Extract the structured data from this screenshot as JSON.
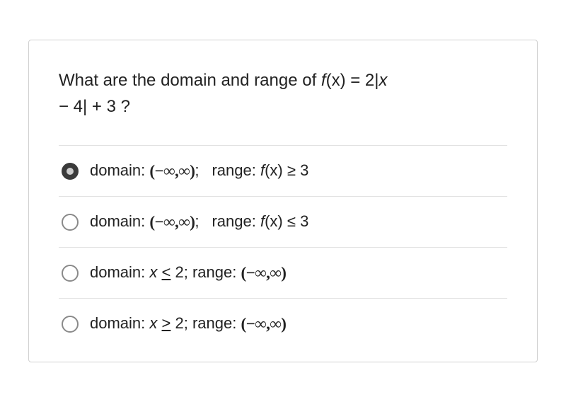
{
  "card": {
    "border_color": "#d0d0d0",
    "background": "#ffffff"
  },
  "question": {
    "prefix": "What are the domain and range of ",
    "fn": "f",
    "paren_x": "(x)",
    "eq": " = 2|",
    "xvar": "x",
    "second_line": " − 4| + 3 ?",
    "font_size": 24,
    "color": "#222222"
  },
  "infinity_interval_open": "(−∞,∞)",
  "options": [
    {
      "selected": true,
      "domain_label": "domain: ",
      "domain_value_kind": "inf_open",
      "domain_suffix": ";",
      "range_label": "range: ",
      "range_fn": "f",
      "range_fn_paren": "(x)",
      "range_op": " ≥ 3",
      "range_kind": "fx"
    },
    {
      "selected": false,
      "domain_label": "domain: ",
      "domain_value_kind": "inf_open",
      "domain_suffix": ";",
      "range_label": "range:  ",
      "range_fn": "f",
      "range_fn_paren": "(x)",
      "range_op": " ≤ 3",
      "range_kind": "fx"
    },
    {
      "selected": false,
      "domain_label": "domain: ",
      "domain_value_text": "x ≤ 2",
      "domain_suffix": "; ",
      "range_label": "range: ",
      "range_kind": "inf_open"
    },
    {
      "selected": false,
      "domain_label": "domain: ",
      "domain_value_text": "x ≥ 2",
      "domain_suffix": "; ",
      "range_label": "range: ",
      "range_kind": "inf_open"
    }
  ],
  "styles": {
    "option_font_size": 22,
    "divider_color": "#e2e2e2",
    "radio_selected_bg": "#3a3a3a",
    "radio_unselected_border": "#8a8a8a"
  }
}
